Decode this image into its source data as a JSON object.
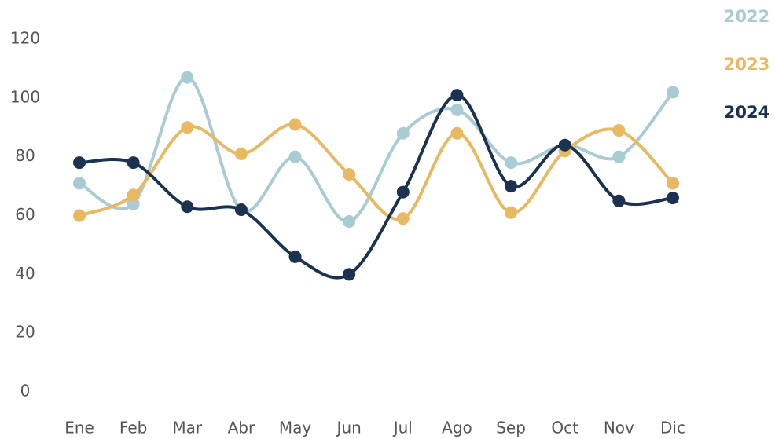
{
  "chart_data": {
    "type": "line",
    "categories": [
      "Ene",
      "Feb",
      "Mar",
      "Abr",
      "May",
      "Jun",
      "Jul",
      "Ago",
      "Sep",
      "Oct",
      "Nov",
      "Dic"
    ],
    "series": [
      {
        "name": "2022",
        "color": "#a9cbd3",
        "values": [
          71,
          64,
          107,
          62,
          80,
          58,
          88,
          96,
          78,
          84,
          80,
          102
        ]
      },
      {
        "name": "2023",
        "color": "#e8b960",
        "values": [
          60,
          67,
          90,
          81,
          91,
          74,
          59,
          88,
          61,
          82,
          89,
          71
        ]
      },
      {
        "name": "2024",
        "color": "#1b3350",
        "values": [
          78,
          78,
          63,
          62,
          46,
          40,
          68,
          101,
          70,
          84,
          65,
          66
        ]
      }
    ],
    "ylim": [
      0,
      120
    ],
    "yticks": [
      0,
      20,
      40,
      60,
      80,
      100,
      120
    ],
    "grid": false,
    "legend": "top-right",
    "smooth": true
  }
}
